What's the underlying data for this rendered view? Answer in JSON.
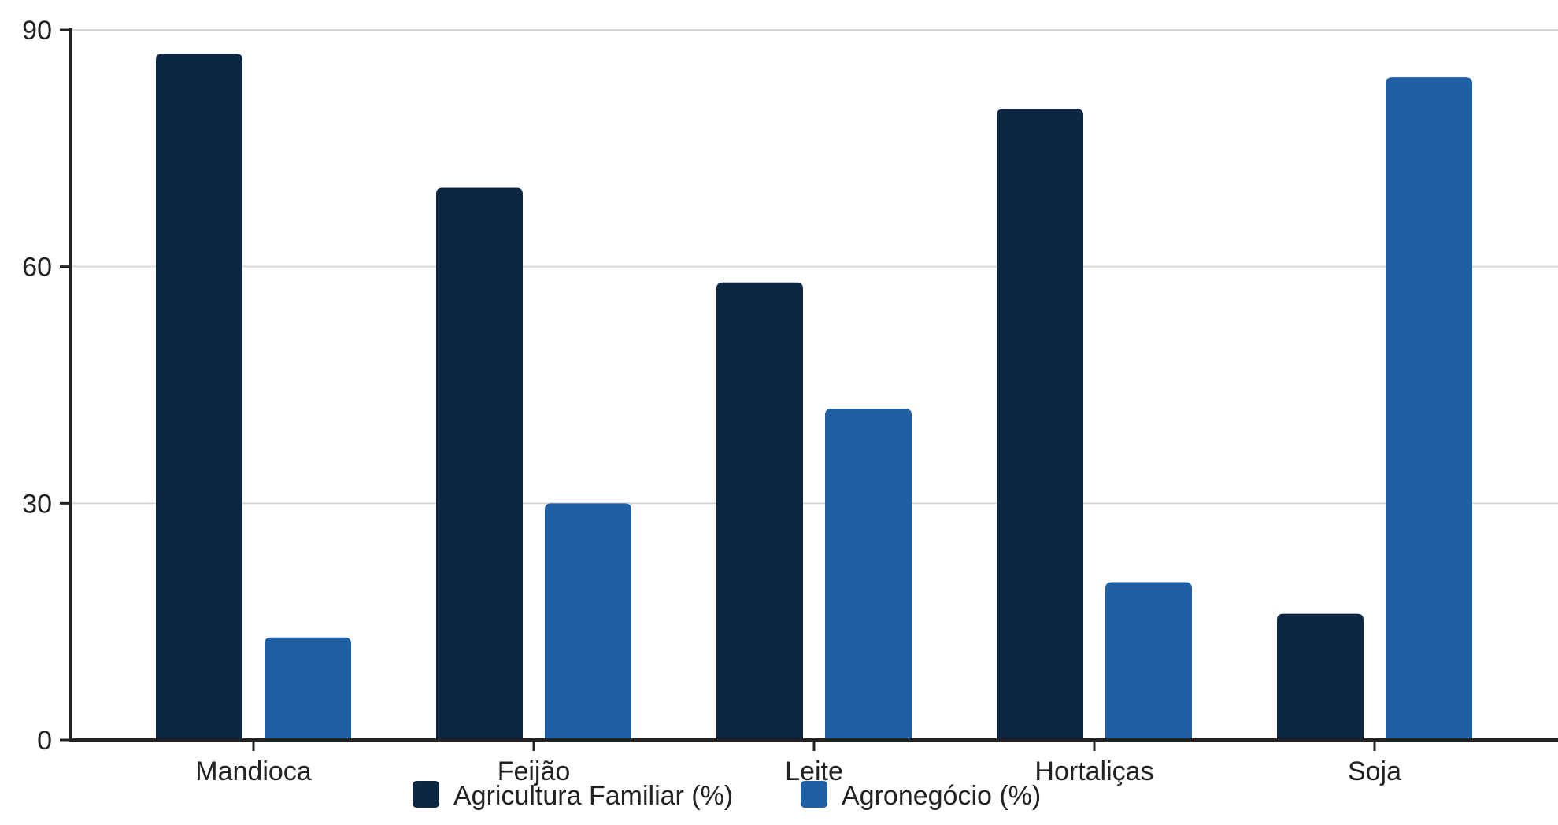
{
  "chart_data": {
    "type": "bar",
    "categories": [
      "Mandioca",
      "Feijão",
      "Leite",
      "Hortaliças",
      "Soja"
    ],
    "series": [
      {
        "name": "Agricultura Familiar (%)",
        "values": [
          87,
          70,
          58,
          80,
          16
        ],
        "color": "#0d2742"
      },
      {
        "name": "Agronegócio (%)",
        "values": [
          13,
          30,
          42,
          20,
          84
        ],
        "color": "#1f5fa3"
      }
    ],
    "yticks": [
      0,
      30,
      60,
      90
    ],
    "ylim": [
      0,
      90
    ],
    "xlabel": "",
    "ylabel": "",
    "title": "",
    "grid": true,
    "legend": "bottom-center"
  }
}
